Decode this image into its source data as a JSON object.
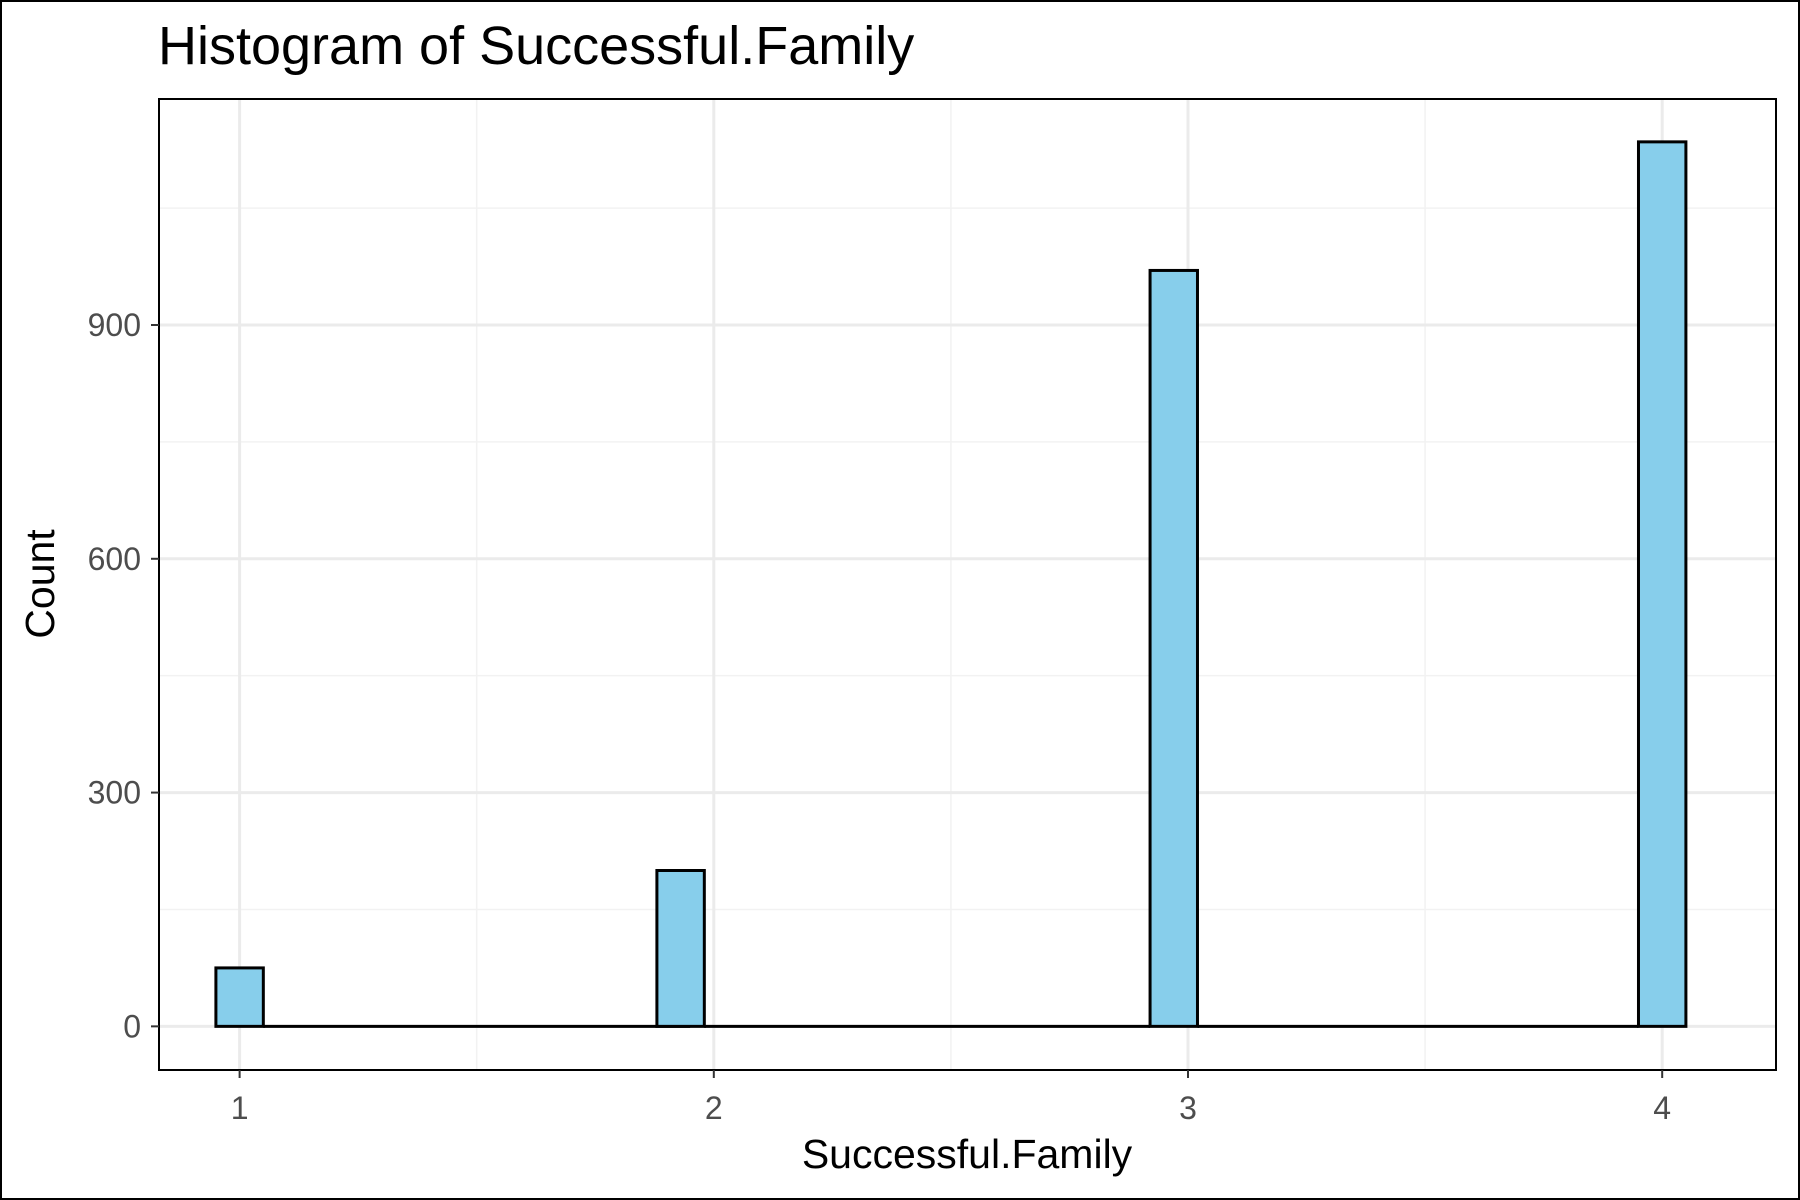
{
  "chart_data": {
    "type": "bar",
    "title": "Histogram of Successful.Family",
    "xlabel": "Successful.Family",
    "ylabel": "Count",
    "x_ticks": [
      "1",
      "2",
      "3",
      "4"
    ],
    "y_ticks": [
      "0",
      "300",
      "600",
      "900"
    ],
    "xlim": [
      0.83,
      4.24
    ],
    "ylim": [
      -56,
      1190
    ],
    "bin_width": 0.1,
    "bins": [
      {
        "x_start": 0.95,
        "x_end": 1.05,
        "count": 75
      },
      {
        "x_start": 1.05,
        "x_end": 1.95,
        "count": 0
      },
      {
        "x_start": 1.88,
        "x_end": 1.98,
        "count": 200
      },
      {
        "x_start": 1.98,
        "x_end": 2.92,
        "count": 0
      },
      {
        "x_start": 2.92,
        "x_end": 3.02,
        "count": 970
      },
      {
        "x_start": 3.02,
        "x_end": 3.95,
        "count": 0
      },
      {
        "x_start": 3.95,
        "x_end": 4.05,
        "count": 1135
      }
    ],
    "grid": true,
    "legend": "none",
    "colors": {
      "bar_fill": "#87CEEB",
      "bar_stroke": "#000000",
      "grid_major": "#EBEBEB",
      "grid_minor": "#F2F2F2",
      "panel_border": "#000000",
      "tick_text": "#4D4D4D",
      "title_text": "#000000"
    }
  }
}
